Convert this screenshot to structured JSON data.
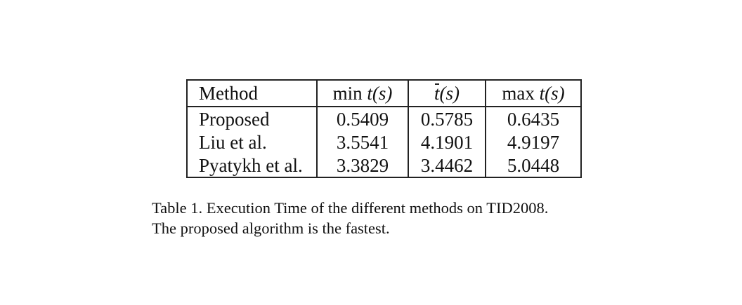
{
  "table": {
    "headers": {
      "method": "Method",
      "min_label": "min",
      "min_var": "t(s)",
      "mean_var_t": "t",
      "mean_var_rest": "(s)",
      "max_label": "max",
      "max_var": "t(s)"
    },
    "rows": [
      {
        "method": "Proposed",
        "min": "0.5409",
        "mean": "0.5785",
        "max": "0.6435",
        "bold": true
      },
      {
        "method": "Liu et al.",
        "min": "3.5541",
        "mean": "4.1901",
        "max": "4.9197",
        "bold": false
      },
      {
        "method": "Pyatykh et al.",
        "min": "3.3829",
        "mean": "3.4462",
        "max": "5.0448",
        "bold": false
      }
    ]
  },
  "caption": {
    "line1": "Table 1. Execution Time of the different methods on TID2008.",
    "line2": "The proposed algorithm is the fastest."
  }
}
